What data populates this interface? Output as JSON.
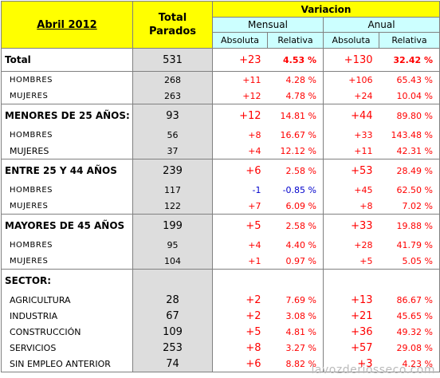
{
  "header": {
    "date": "Abril 2012",
    "total_line1": "Total",
    "total_line2": "Parados",
    "variacion": "Variacion",
    "mensual": "Mensual",
    "anual": "Anual",
    "absoluta": "Absoluta",
    "relativa": "Relativa"
  },
  "rows": [
    {
      "label": "Total",
      "total": "531",
      "m_abs": "+23",
      "m_rel": "4.53 %",
      "a_abs": "+130",
      "a_rel": "32.42 %"
    },
    {
      "label": "HOMBRES",
      "total": "268",
      "m_abs": "+11",
      "m_rel": "4.28 %",
      "a_abs": "+106",
      "a_rel": "65.43 %"
    },
    {
      "label": "MUJERES",
      "total": "263",
      "m_abs": "+12",
      "m_rel": "4.78 %",
      "a_abs": "+24",
      "a_rel": "10.04 %"
    },
    {
      "label": "MENORES DE 25 AÑOS:",
      "total": "93",
      "m_abs": "+12",
      "m_rel": "14.81 %",
      "a_abs": "+44",
      "a_rel": "89.80 %"
    },
    {
      "label": "HOMBRES",
      "total": "56",
      "m_abs": "+8",
      "m_rel": "16.67 %",
      "a_abs": "+33",
      "a_rel": "143.48 %"
    },
    {
      "label": "MUJERES",
      "total": "37",
      "m_abs": "+4",
      "m_rel": "12.12 %",
      "a_abs": "+11",
      "a_rel": "42.31 %"
    },
    {
      "label": "ENTRE 25 Y 44 AÑOS",
      "total": "239",
      "m_abs": "+6",
      "m_rel": "2.58 %",
      "a_abs": "+53",
      "a_rel": "28.49 %"
    },
    {
      "label": "HOMBRES",
      "total": "117",
      "m_abs": "-1",
      "m_rel": "-0.85 %",
      "a_abs": "+45",
      "a_rel": "62.50 %"
    },
    {
      "label": "MUJERES",
      "total": "122",
      "m_abs": "+7",
      "m_rel": "6.09 %",
      "a_abs": "+8",
      "a_rel": "7.02 %"
    },
    {
      "label": "MAYORES DE 45 AÑOS",
      "total": "199",
      "m_abs": "+5",
      "m_rel": "2.58 %",
      "a_abs": "+33",
      "a_rel": "19.88 %"
    },
    {
      "label": "HOMBRES",
      "total": "95",
      "m_abs": "+4",
      "m_rel": "4.40 %",
      "a_abs": "+28",
      "a_rel": "41.79 %"
    },
    {
      "label": "MUJERES",
      "total": "104",
      "m_abs": "+1",
      "m_rel": "0.97 %",
      "a_abs": "+5",
      "a_rel": "5.05 %"
    },
    {
      "label": "SECTOR:",
      "total": "",
      "m_abs": "",
      "m_rel": "",
      "a_abs": "",
      "a_rel": ""
    },
    {
      "label": "AGRICULTURA",
      "total": "28",
      "m_abs": "+2",
      "m_rel": "7.69 %",
      "a_abs": "+13",
      "a_rel": "86.67 %"
    },
    {
      "label": "INDUSTRIA",
      "total": "67",
      "m_abs": "+2",
      "m_rel": "3.08 %",
      "a_abs": "+21",
      "a_rel": "45.65 %"
    },
    {
      "label": "CONSTRUCCIÓN",
      "total": "109",
      "m_abs": "+5",
      "m_rel": "4.81 %",
      "a_abs": "+36",
      "a_rel": "49.32 %"
    },
    {
      "label": "SERVICIOS",
      "total": "253",
      "m_abs": "+8",
      "m_rel": "3.27 %",
      "a_abs": "+57",
      "a_rel": "29.08 %"
    },
    {
      "label": "SIN EMPLEO ANTERIOR",
      "total": "74",
      "m_abs": "+6",
      "m_rel": "8.82 %",
      "a_abs": "+3",
      "a_rel": "4.23 %"
    }
  ],
  "watermark": "lavozderiosseco.com",
  "colors": {
    "header_bg": "#ffff00",
    "subheader_bg": "#ccffff",
    "total_col_bg": "#dddddd",
    "positive": "#ff0000",
    "negative": "#0000cc"
  }
}
